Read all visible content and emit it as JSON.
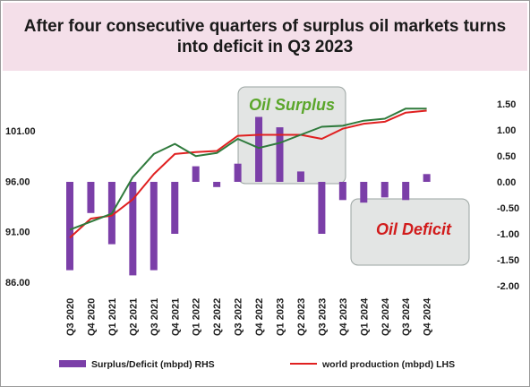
{
  "chart_data": {
    "type": "bar",
    "title": "After four consecutive quarters of surplus oil markets turns into deficit in Q3 2023",
    "categories": [
      "Q3 2020",
      "Q4 2020",
      "Q1 2021",
      "Q2 2021",
      "Q3 2021",
      "Q4 2021",
      "Q1 2022",
      "Q2 2022",
      "Q3 2022",
      "Q4 2022",
      "Q1 2023",
      "Q2 2023",
      "Q3 2023",
      "Q4 2023",
      "Q1 2024",
      "Q2 2024",
      "Q3 2024",
      "Q4 2024"
    ],
    "left_axis": {
      "ticks": [
        "86.00",
        "91.00",
        "96.00",
        "101.00"
      ],
      "ylim": [
        86,
        104
      ]
    },
    "right_axis": {
      "ticks": [
        "1.50",
        "1.00",
        "0.50",
        "0.00",
        "-0.50",
        "-1.00",
        "-1.50",
        "-2.00"
      ],
      "ylim": [
        -2.0,
        1.5
      ]
    },
    "series": [
      {
        "name": "Surplus/Deficit (mbpd) RHS",
        "type": "bar",
        "axis": "right",
        "color": "#7b3fa8",
        "values": [
          -1.7,
          -0.6,
          -1.2,
          -1.8,
          -1.7,
          -1.0,
          0.3,
          -0.1,
          0.35,
          1.25,
          1.05,
          0.2,
          -1.0,
          -0.35,
          -0.4,
          -0.3,
          -0.35,
          0.15
        ]
      },
      {
        "name": "world production (mbpd) LHS",
        "type": "line",
        "axis": "left",
        "color": "#e02020",
        "values": [
          90.4,
          92.3,
          92.6,
          94.2,
          96.7,
          98.7,
          98.9,
          99.0,
          100.5,
          100.6,
          100.6,
          100.6,
          100.2,
          101.2,
          101.7,
          101.9,
          102.8,
          103.0
        ]
      },
      {
        "name": "",
        "type": "line",
        "axis": "left",
        "color": "#2f7a3c",
        "values": [
          91.2,
          92.0,
          92.8,
          96.4,
          98.7,
          99.7,
          98.5,
          98.8,
          100.2,
          99.3,
          99.8,
          100.6,
          101.4,
          101.5,
          102.0,
          102.2,
          103.2,
          103.2
        ]
      }
    ],
    "callouts": [
      {
        "label": "Oil Surplus",
        "color": "#5aa62a"
      },
      {
        "label": "Oil Deficit",
        "color": "#d11b1b"
      }
    ]
  }
}
